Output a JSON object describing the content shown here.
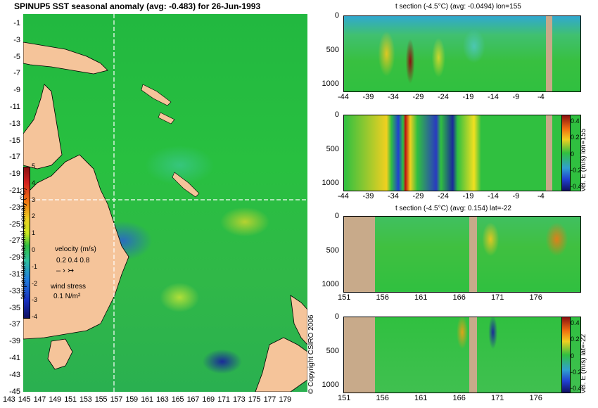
{
  "map": {
    "title": "SPINUP5 SST seasonal anomaly (avg: -0.483) for 26-Jun-1993",
    "y_ticks": [
      "-1",
      "-3",
      "-5",
      "-7",
      "-9",
      "-11",
      "-13",
      "-15",
      "-17",
      "-19",
      "-21",
      "-23",
      "-25",
      "-27",
      "-29",
      "-31",
      "-33",
      "-35",
      "-37",
      "-39",
      "-41",
      "-43",
      "-45"
    ],
    "x_ticks": [
      "143",
      "145",
      "147",
      "149",
      "151",
      "153",
      "155",
      "157",
      "159",
      "161",
      "163",
      "165",
      "167",
      "169",
      "171",
      "173",
      "175",
      "177",
      "179"
    ],
    "colorbar": {
      "ticks": [
        "5",
        "4",
        "3",
        "2",
        "1",
        "0",
        "-1",
        "-2",
        "-3",
        "-4"
      ],
      "label": "temperature seasonal anomaly (°C)",
      "velocity_label": "velocity (m/s)",
      "velocity_values": "0.2 0.4 0.8",
      "wind_label": "wind stress",
      "wind_value": "0.1 N/m²"
    },
    "markers": {
      "lon": 155,
      "lat": -22
    }
  },
  "copyright": "© Copyright CSIRO 2006",
  "panels": [
    {
      "title": "t section (-4.5°C) (avg: -0.0494) lon=155",
      "y_ticks": [
        "0",
        "500",
        "1000"
      ],
      "x_ticks": [
        "-44",
        "-39",
        "-34",
        "-29",
        "-24",
        "-19",
        "-14",
        "-9",
        "-4"
      ]
    },
    {
      "title": "",
      "y_ticks": [
        "0",
        "500",
        "1000"
      ],
      "x_ticks": [
        "-44",
        "-39",
        "-34",
        "-29",
        "-24",
        "-19",
        "-14",
        "-9",
        "-4"
      ],
      "colorbar_ticks": [
        "0.4",
        "0.2",
        "0",
        "-0.2",
        "-0.4"
      ],
      "colorbar_label": "vel. E (m/s) lon=155"
    },
    {
      "title": "t section (-4.5°C) (avg: 0.154) lat=-22",
      "y_ticks": [
        "0",
        "500",
        "1000"
      ],
      "x_ticks": [
        "151",
        "156",
        "161",
        "166",
        "171",
        "176"
      ]
    },
    {
      "title": "",
      "y_ticks": [
        "0",
        "500",
        "1000"
      ],
      "x_ticks": [
        "151",
        "156",
        "161",
        "166",
        "171",
        "176"
      ],
      "colorbar_ticks": [
        "0.4",
        "0.2",
        "0",
        "-0.2",
        "-0.4"
      ],
      "colorbar_label": "vel. E (m/s) lat=-22"
    }
  ]
}
